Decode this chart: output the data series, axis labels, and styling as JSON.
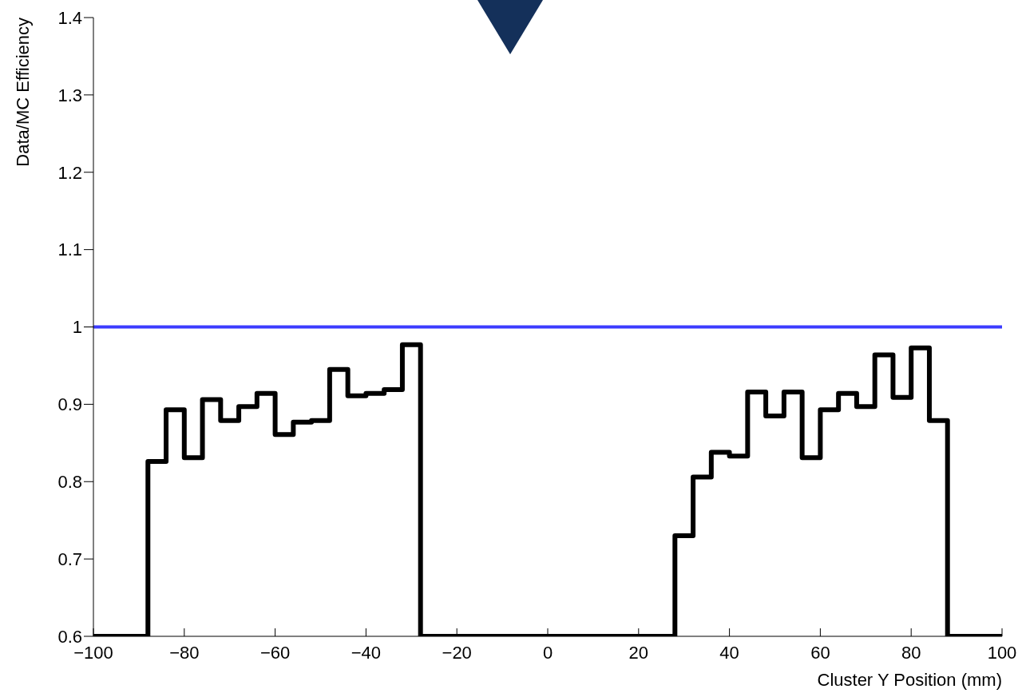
{
  "chart_data": {
    "type": "histogram",
    "xlabel": "Cluster Y Position (mm)",
    "ylabel": "Data/MC Efficiency",
    "color": "#000000",
    "bins": [
      -100,
      -96,
      -92,
      -88,
      -84,
      -80,
      -76,
      -72,
      -68,
      -64,
      -60,
      -56,
      -52,
      -48,
      -44,
      -40,
      -36,
      -32,
      -28,
      -24,
      -20,
      -16,
      -12,
      -8,
      -4,
      0,
      4,
      8,
      12,
      16,
      20,
      24,
      28,
      32,
      36,
      40,
      44,
      48,
      52,
      56,
      60,
      64,
      68,
      72,
      76,
      80,
      84,
      88,
      92,
      96,
      100
    ],
    "values": [
      null,
      null,
      null,
      0.826,
      0.893,
      0.831,
      0.906,
      0.879,
      0.897,
      0.914,
      0.861,
      0.877,
      0.879,
      0.945,
      0.911,
      0.914,
      0.919,
      0.977,
      null,
      null,
      null,
      null,
      null,
      null,
      null,
      null,
      null,
      null,
      null,
      null,
      null,
      null,
      0.73,
      0.806,
      0.838,
      0.833,
      0.916,
      0.885,
      0.916,
      0.831,
      0.893,
      0.914,
      0.897,
      0.964,
      0.909,
      0.973,
      0.879,
      null,
      null,
      null
    ],
    "xlim": [
      -100,
      100
    ],
    "xticks": [
      {
        "value": -100,
        "label": "−100"
      },
      {
        "value": -80,
        "label": "−80"
      },
      {
        "value": -60,
        "label": "−60"
      },
      {
        "value": -40,
        "label": "−40"
      },
      {
        "value": -20,
        "label": "−20"
      },
      0,
      20,
      40,
      60,
      80,
      100
    ],
    "ylim": [
      0.6,
      1.4
    ],
    "yticks": [
      0.6,
      0.7,
      0.8,
      0.9,
      1,
      1.1,
      1.2,
      1.3,
      1.4
    ],
    "ref_lines": [
      {
        "axis": "y",
        "value": 1,
        "color": "#3b3bff"
      }
    ]
  }
}
